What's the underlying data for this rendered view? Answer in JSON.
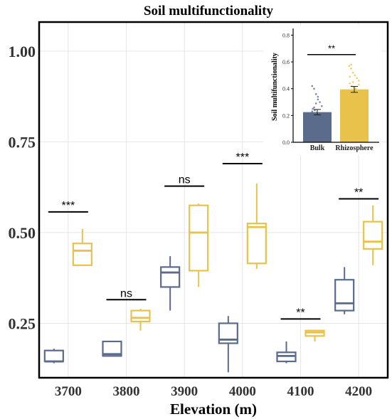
{
  "chart_data": [
    {
      "type": "box",
      "title": "Soil multifunctionality",
      "xlabel": "Elevation (m)",
      "ylabel": "",
      "categories": [
        "3700",
        "3800",
        "3900",
        "4000",
        "4100",
        "4200"
      ],
      "ylim": [
        0.1,
        1.08
      ],
      "yticks": [
        "0.25",
        "0.50",
        "0.75",
        "1.00"
      ],
      "ytick_values": [
        0.25,
        0.5,
        0.75,
        1.0
      ],
      "grid": true,
      "colors": {
        "bulk": "#5a6b8c",
        "rhizosphere": "#e8c24a"
      },
      "series": [
        {
          "key": "bulk",
          "boxes": [
            {
              "whislo": 0.14,
              "q1": 0.145,
              "med": 0.145,
              "q3": 0.175,
              "whishi": 0.18
            },
            {
              "whislo": 0.16,
              "q1": 0.16,
              "med": 0.165,
              "q3": 0.2,
              "whishi": 0.2
            },
            {
              "whislo": 0.285,
              "q1": 0.35,
              "med": 0.39,
              "q3": 0.405,
              "whishi": 0.435
            },
            {
              "whislo": 0.115,
              "q1": 0.195,
              "med": 0.205,
              "q3": 0.25,
              "whishi": 0.27
            },
            {
              "whislo": 0.14,
              "q1": 0.145,
              "med": 0.16,
              "q3": 0.17,
              "whishi": 0.2
            },
            {
              "whislo": 0.275,
              "q1": 0.285,
              "med": 0.305,
              "q3": 0.37,
              "whishi": 0.405
            }
          ]
        },
        {
          "key": "rhizosphere",
          "boxes": [
            {
              "whislo": 0.41,
              "q1": 0.41,
              "med": 0.45,
              "q3": 0.47,
              "whishi": 0.51
            },
            {
              "whislo": 0.23,
              "q1": 0.255,
              "med": 0.265,
              "q3": 0.285,
              "whishi": 0.29
            },
            {
              "whislo": 0.35,
              "q1": 0.395,
              "med": 0.5,
              "q3": 0.575,
              "whishi": 0.58
            },
            {
              "whislo": 0.4,
              "q1": 0.415,
              "med": 0.515,
              "q3": 0.525,
              "whishi": 0.635
            },
            {
              "whislo": 0.2,
              "q1": 0.215,
              "med": 0.225,
              "q3": 0.23,
              "whishi": 0.23
            },
            {
              "whislo": 0.41,
              "q1": 0.455,
              "med": 0.475,
              "q3": 0.53,
              "whishi": 0.575
            }
          ]
        }
      ],
      "significance": [
        {
          "label": "***",
          "y": 0.557
        },
        {
          "label": "ns",
          "y": 0.315
        },
        {
          "label": "ns",
          "y": 0.628
        },
        {
          "label": "***",
          "y": 0.69
        },
        {
          "label": "**",
          "y": 0.262
        },
        {
          "label": "**",
          "y": 0.593
        }
      ]
    },
    {
      "type": "bar",
      "ylabel": "Soil multifunctionality",
      "categories": [
        "Bulk",
        "Rhizosphere"
      ],
      "values": [
        0.225,
        0.395
      ],
      "errors": [
        0.02,
        0.022
      ],
      "colors": [
        "#5a6b8c",
        "#e8c24a"
      ],
      "ylim": [
        0,
        0.85
      ],
      "yticks": [
        "0.0",
        "0.2",
        "0.4",
        "0.6",
        "0.8"
      ],
      "ytick_values": [
        0.0,
        0.2,
        0.4,
        0.6,
        0.8
      ],
      "significance": {
        "label": "**",
        "y": 0.655
      },
      "points": [
        [
          0.42,
          0.4,
          0.36,
          0.34,
          0.3,
          0.27,
          0.25,
          0.24,
          0.22,
          0.2,
          0.19,
          0.17,
          0.15,
          0.14,
          0.17,
          0.18,
          0.21,
          0.23,
          0.26,
          0.29,
          0.32,
          0.16,
          0.18,
          0.2
        ],
        [
          0.57,
          0.55,
          0.52,
          0.5,
          0.48,
          0.46,
          0.44,
          0.42,
          0.41,
          0.4,
          0.38,
          0.36,
          0.35,
          0.33,
          0.3,
          0.27,
          0.24,
          0.22,
          0.58,
          0.45,
          0.39,
          0.37,
          0.43,
          0.49
        ]
      ]
    }
  ]
}
